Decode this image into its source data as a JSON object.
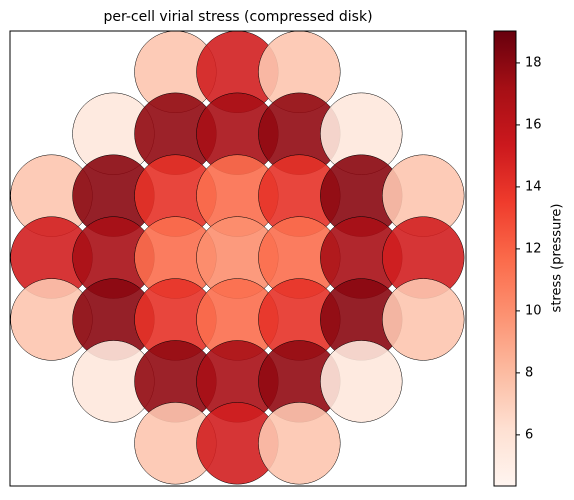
{
  "chart_data": {
    "type": "scatter",
    "title": "per-cell virial stress (compressed disk)",
    "x": [
      -1,
      0,
      1,
      -2,
      -1,
      0,
      1,
      2,
      -3,
      -2,
      -1,
      0,
      1,
      2,
      3,
      -3,
      -2,
      -1,
      0,
      1,
      2,
      3,
      -3,
      -2,
      -1,
      0,
      1,
      2,
      3,
      -2,
      -1,
      0,
      1,
      2,
      -1,
      0,
      1
    ],
    "y": [
      3,
      3,
      3,
      2,
      2,
      2,
      2,
      2,
      1,
      1,
      1,
      1,
      1,
      1,
      1,
      0,
      0,
      0,
      0,
      0,
      0,
      0,
      -1,
      -1,
      -1,
      -1,
      -1,
      -1,
      -1,
      -2,
      -2,
      -2,
      -2,
      -2,
      -3,
      -3,
      -3
    ],
    "values": [
      7.5,
      15,
      7.5,
      5.5,
      17.8,
      17,
      17.8,
      5.5,
      7.5,
      18,
      14,
      11.5,
      14,
      18,
      7.5,
      15,
      17,
      11.5,
      10,
      11.5,
      17,
      15,
      7.5,
      18,
      14,
      11.5,
      14,
      18,
      7.5,
      5.5,
      17.8,
      17,
      17.8,
      5.5,
      7.5,
      15,
      7.5
    ],
    "marker_radius": 0.66,
    "xlim": [
      -3.67,
      3.69
    ],
    "ylim": [
      -3.69,
      3.66
    ],
    "colormap": "Reds",
    "alpha": 0.9,
    "colorbar": {
      "label": "stress (pressure)",
      "lim": [
        4.35,
        19.03
      ],
      "ticks": [
        6,
        8,
        10,
        12,
        14,
        16,
        18
      ]
    }
  }
}
